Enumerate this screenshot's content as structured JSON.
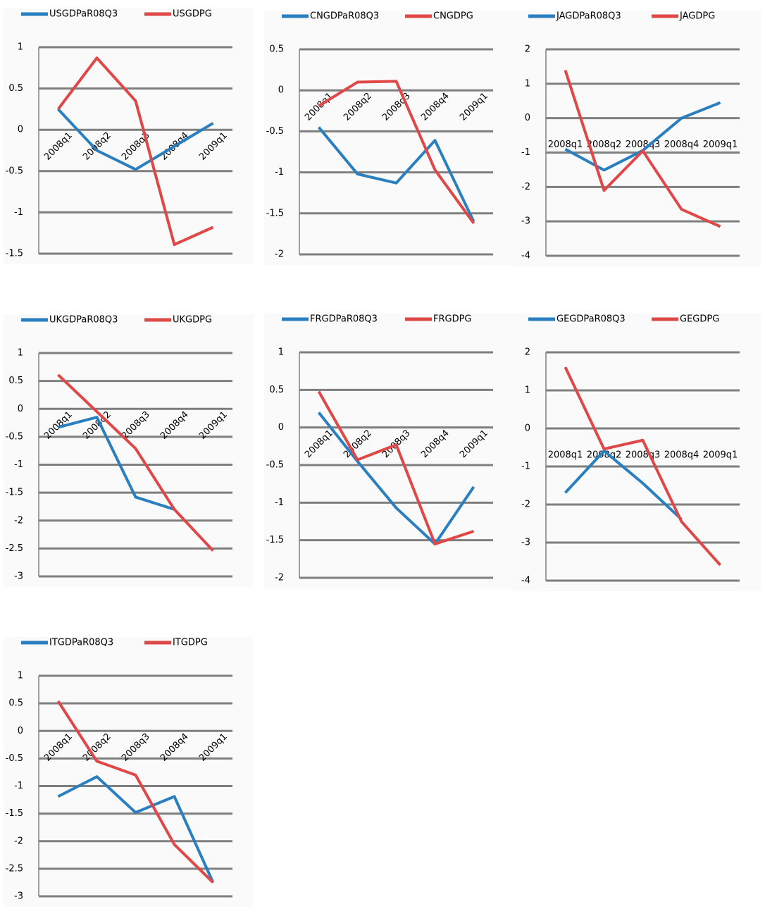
{
  "chart_data": [
    {
      "type": "line",
      "categories": [
        "2008q1",
        "2008q2",
        "2008q3",
        "2008q4",
        "2009q1"
      ],
      "series": [
        {
          "name": "USGDPaR08Q3",
          "color": "#2a7fc0",
          "values": [
            0.25,
            -0.25,
            -0.48,
            -0.2,
            0.08
          ]
        },
        {
          "name": "USGDPG",
          "color": "#e04848",
          "values": [
            0.25,
            0.87,
            0.35,
            -1.39,
            -1.18
          ]
        }
      ],
      "ylim": [
        -1.5,
        1
      ],
      "yticks": [
        -1.5,
        -1,
        -0.5,
        0,
        0.5,
        1
      ],
      "grid": true,
      "legend": "top"
    },
    {
      "type": "line",
      "categories": [
        "2008q1",
        "2008q2",
        "2008q3",
        "2008q4",
        "2009q1"
      ],
      "series": [
        {
          "name": "CNGDPaR08Q3",
          "color": "#2a7fc0",
          "values": [
            -0.45,
            -1.02,
            -1.13,
            -0.61,
            -1.6
          ]
        },
        {
          "name": "CNGDPG",
          "color": "#e04848",
          "values": [
            -0.19,
            0.1,
            0.11,
            -0.97,
            -1.62
          ]
        }
      ],
      "ylim": [
        -2,
        0.5
      ],
      "yticks": [
        -2,
        -1.5,
        -1,
        -0.5,
        0,
        0.5
      ],
      "grid": true,
      "legend": "top"
    },
    {
      "type": "line",
      "categories": [
        "2008q1",
        "2008q2",
        "2008q3",
        "2008q4",
        "2009q1"
      ],
      "series": [
        {
          "name": "JAGDPaR08Q3",
          "color": "#2a7fc0",
          "values": [
            -0.9,
            -1.51,
            -0.94,
            0,
            0.45
          ]
        },
        {
          "name": "JAGDPG",
          "color": "#e04848",
          "values": [
            1.39,
            -2.1,
            -0.95,
            -2.65,
            -3.15
          ]
        }
      ],
      "ylim": [
        -4,
        2
      ],
      "yticks": [
        -4,
        -3,
        -2,
        -1,
        0,
        1,
        2
      ],
      "grid": true,
      "legend": "top"
    },
    {
      "type": "line",
      "categories": [
        "2008q1",
        "2008q2",
        "2008q3",
        "2008q4",
        "2009q1"
      ],
      "series": [
        {
          "name": "UKGDPaR08Q3",
          "color": "#2a7fc0",
          "values": [
            -0.33,
            -0.15,
            -1.58,
            -1.8,
            null
          ]
        },
        {
          "name": "UKGDPG",
          "color": "#e04848",
          "values": [
            0.61,
            -0.05,
            -0.71,
            -1.8,
            -2.54
          ]
        }
      ],
      "ylim": [
        -3,
        1
      ],
      "yticks": [
        -3,
        -2.5,
        -2,
        -1.5,
        -1,
        -0.5,
        0,
        0.5,
        1
      ],
      "grid": true,
      "legend": "top"
    },
    {
      "type": "line",
      "categories": [
        "2008q1",
        "2008q2",
        "2008q3",
        "2008q4",
        "2009q1"
      ],
      "series": [
        {
          "name": "FRGDPaR08Q3",
          "color": "#2a7fc0",
          "values": [
            0.2,
            -0.45,
            -1.07,
            -1.55,
            -0.79
          ]
        },
        {
          "name": "FRGDPG",
          "color": "#e04848",
          "values": [
            0.48,
            -0.43,
            -0.23,
            -1.55,
            -1.38
          ]
        }
      ],
      "ylim": [
        -2,
        1
      ],
      "yticks": [
        -2,
        -1.5,
        -1,
        -0.5,
        0,
        0.5,
        1
      ],
      "grid": true,
      "legend": "top"
    },
    {
      "type": "line",
      "categories": [
        "2008q1",
        "2008q2",
        "2008q3",
        "2008q4",
        "2009q1"
      ],
      "series": [
        {
          "name": "GEGDPaR08Q3",
          "color": "#2a7fc0",
          "values": [
            -1.69,
            -0.59,
            -1.44,
            -2.39,
            null
          ]
        },
        {
          "name": "GEGDPG",
          "color": "#e04848",
          "values": [
            1.61,
            -0.54,
            -0.31,
            -2.45,
            -3.59
          ]
        }
      ],
      "ylim": [
        -4,
        2
      ],
      "yticks": [
        -4,
        -3,
        -2,
        -1,
        0,
        1,
        2
      ],
      "grid": true,
      "legend": "top"
    },
    {
      "type": "line",
      "categories": [
        "2008q1",
        "2008q2",
        "2008q3",
        "2008q4",
        "2009q1"
      ],
      "series": [
        {
          "name": "ITGDPaR08Q3",
          "color": "#2a7fc0",
          "values": [
            -1.19,
            -0.83,
            -1.48,
            -1.19,
            -2.75
          ]
        },
        {
          "name": "ITGDPG",
          "color": "#e04848",
          "values": [
            0.54,
            -0.55,
            -0.8,
            -2.06,
            -2.75
          ]
        }
      ],
      "ylim": [
        -3,
        1
      ],
      "yticks": [
        -3,
        -2.5,
        -2,
        -1.5,
        -1,
        -0.5,
        0,
        0.5,
        1
      ],
      "grid": true,
      "legend": "top"
    }
  ]
}
